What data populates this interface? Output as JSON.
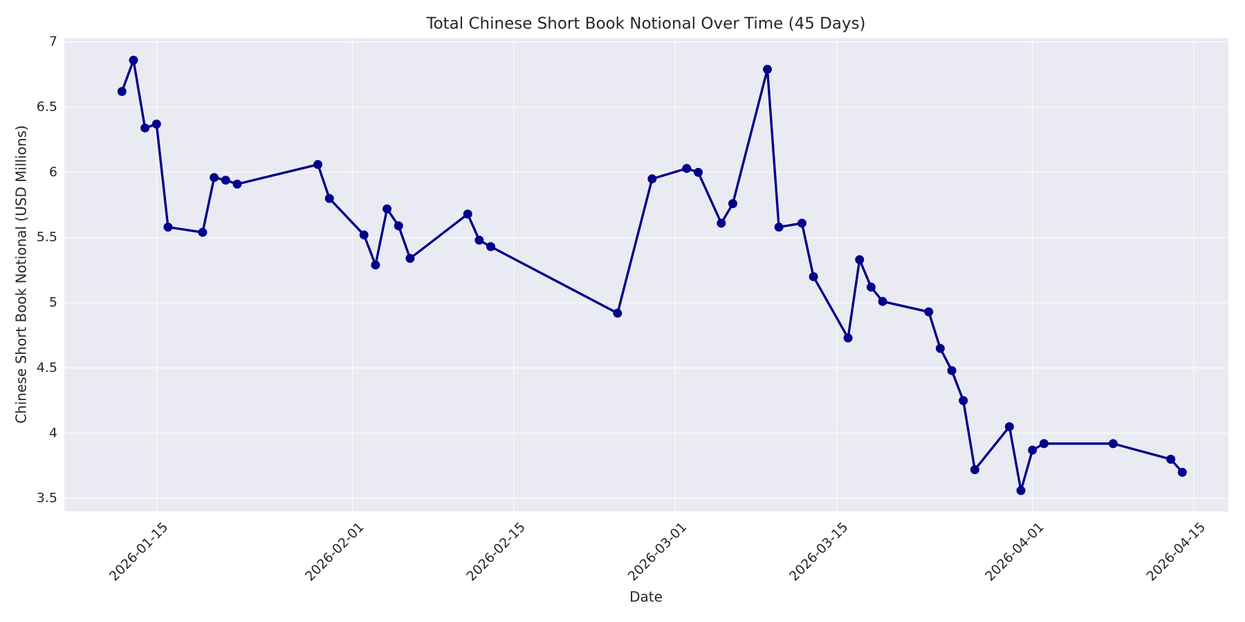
{
  "chart_data": {
    "type": "line",
    "title": "Total Chinese Short Book Notional Over Time (45 Days)",
    "x_label": "Date",
    "y_label": "Chinese Short Book Notional (USD Millions)",
    "x": [
      "2026-01-12",
      "2026-01-13",
      "2026-01-14",
      "2026-01-15",
      "2026-01-16",
      "2026-01-19",
      "2026-01-20",
      "2026-01-21",
      "2026-01-22",
      "2026-01-29",
      "2026-01-30",
      "2026-02-02",
      "2026-02-03",
      "2026-02-04",
      "2026-02-05",
      "2026-02-06",
      "2026-02-11",
      "2026-02-12",
      "2026-02-13",
      "2026-02-24",
      "2026-02-27",
      "2026-03-02",
      "2026-03-03",
      "2026-03-05",
      "2026-03-06",
      "2026-03-09",
      "2026-03-10",
      "2026-03-12",
      "2026-03-13",
      "2026-03-16",
      "2026-03-17",
      "2026-03-18",
      "2026-03-19",
      "2026-03-23",
      "2026-03-24",
      "2026-03-25",
      "2026-03-26",
      "2026-03-27",
      "2026-03-30",
      "2026-03-31",
      "2026-04-01",
      "2026-04-02",
      "2026-04-08",
      "2026-04-13",
      "2026-04-14"
    ],
    "series": [
      {
        "name": "Total Chinese Short Book Notional",
        "color": "#00008b",
        "values": [
          6.62,
          6.86,
          6.34,
          6.37,
          5.58,
          5.54,
          5.96,
          5.94,
          5.91,
          6.06,
          5.8,
          5.52,
          5.29,
          5.72,
          5.59,
          5.34,
          5.68,
          5.48,
          5.43,
          4.92,
          5.95,
          6.03,
          6.0,
          5.61,
          5.76,
          6.79,
          5.58,
          5.61,
          5.2,
          4.73,
          5.33,
          5.12,
          5.01,
          4.93,
          4.65,
          4.48,
          4.25,
          3.72,
          4.05,
          3.56,
          3.87,
          3.92,
          3.92,
          3.8,
          3.7
        ]
      }
    ],
    "xlim": [
      "2026-01-07",
      "2026-04-18"
    ],
    "xticks": [
      "2026-01-15",
      "2026-02-01",
      "2026-02-15",
      "2026-03-01",
      "2026-03-15",
      "2026-04-01",
      "2026-04-15"
    ],
    "ylim": [
      3.4,
      7.03
    ],
    "yticks": [
      3.5,
      4.0,
      4.5,
      5.0,
      5.5,
      6.0,
      6.5,
      7.0
    ],
    "grid": true
  }
}
